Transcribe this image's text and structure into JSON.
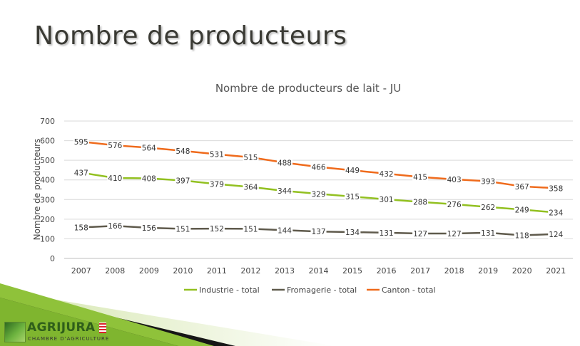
{
  "slide": {
    "title": "Nombre de producteurs"
  },
  "logo": {
    "name": "AGRIJURA",
    "subtitle": "CHAMBRE D'AGRICULTURE"
  },
  "chart_data": {
    "type": "line",
    "title": "Nombre de producteurs de lait - JU",
    "xlabel": "",
    "ylabel": "Nombre de producteurs",
    "ylim": [
      0,
      700
    ],
    "yticks": [
      0,
      100,
      200,
      300,
      400,
      500,
      600,
      700
    ],
    "grid": true,
    "legend_position": "bottom",
    "categories": [
      "2007",
      "2008",
      "2009",
      "2010",
      "2011",
      "2012",
      "2013",
      "2014",
      "2015",
      "2016",
      "2017",
      "2018",
      "2019",
      "2020",
      "2021"
    ],
    "series": [
      {
        "name": "Industrie - total",
        "color": "#92c020",
        "values": [
          437,
          410,
          408,
          397,
          379,
          364,
          344,
          329,
          315,
          301,
          288,
          276,
          262,
          249,
          234
        ]
      },
      {
        "name": "Fromagerie - total",
        "color": "#5f5a4c",
        "values": [
          158,
          166,
          156,
          151,
          152,
          151,
          144,
          137,
          134,
          131,
          127,
          127,
          131,
          118,
          124
        ]
      },
      {
        "name": "Canton - total",
        "color": "#ef6a1b",
        "values": [
          595,
          576,
          564,
          548,
          531,
          515,
          488,
          466,
          449,
          432,
          415,
          403,
          393,
          367,
          358
        ]
      }
    ]
  }
}
